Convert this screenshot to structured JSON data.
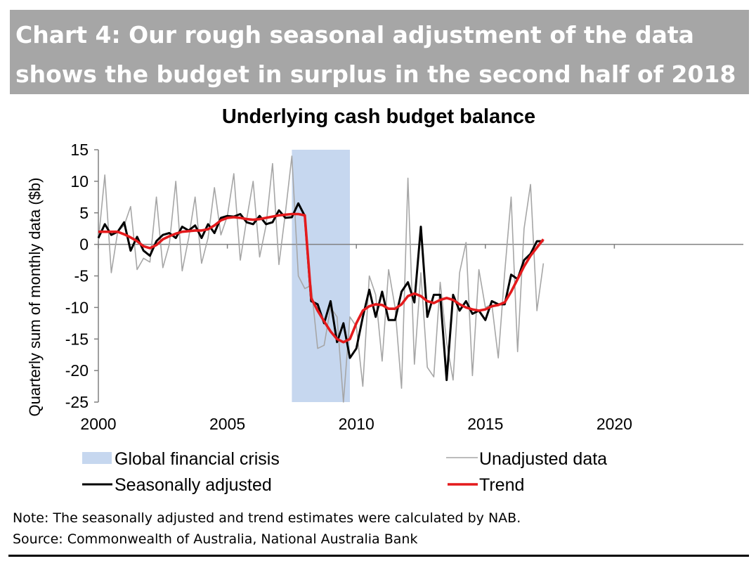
{
  "header": {
    "line1": "Chart 4: Our rough seasonal adjustment of the data",
    "line2": "shows the budget in surplus in the second half of 2018"
  },
  "colors": {
    "banner": "#a6a6a6",
    "shade": "#c6d7ef",
    "unadjusted": "#a6a6a6",
    "seasonal": "#000000",
    "trend": "#e41a1c"
  },
  "chart_data": {
    "type": "line",
    "title": "Underlying cash budget balance",
    "ylabel": "Quarterly sum of monthly data ($b)",
    "xlabel": "",
    "xlim": [
      2000,
      2025
    ],
    "ylim": [
      -25,
      15
    ],
    "xticks": [
      2000,
      2005,
      2010,
      2015,
      2020
    ],
    "yticks": [
      15,
      10,
      5,
      0,
      -5,
      -10,
      -15,
      -20,
      -25
    ],
    "shaded_region": {
      "name": "Global financial crisis",
      "x": [
        2007.5,
        2009.75
      ]
    },
    "legend": [
      "Global financial crisis",
      "Unadjusted data",
      "Seasonally adjusted",
      "Trend"
    ],
    "x_start": 2000.0,
    "x_step": 0.25,
    "series": [
      {
        "name": "Unadjusted data",
        "values": [
          0.5,
          11,
          -4.5,
          2,
          3,
          6,
          -4,
          -2.2,
          -2.8,
          7.5,
          -3.7,
          0,
          10,
          -4.2,
          1,
          7.5,
          -3,
          1,
          9,
          1.5,
          4.5,
          11.2,
          -2.5,
          4,
          10,
          -2,
          3,
          12.8,
          -3.2,
          5,
          14,
          -5,
          -7,
          -6.5,
          -16.5,
          -16,
          -10,
          -11.5,
          -25,
          -11.5,
          -13,
          -22.5,
          -5,
          -8,
          -18.5,
          -4,
          -10,
          -22.8,
          10.5,
          -19,
          -4.5,
          -19.5,
          -21,
          -6,
          -15.5,
          -21.5,
          -4.5,
          0.3,
          -20.8,
          -4,
          -10,
          -9.5,
          -18,
          -4.5,
          7.5,
          -17,
          2.5,
          9.5,
          -10.5,
          -3
        ]
      },
      {
        "name": "Seasonally adjusted",
        "values": [
          1,
          3.2,
          1.5,
          2,
          3.5,
          -1,
          1.2,
          -1,
          -1.8,
          0.5,
          1.5,
          1.8,
          1,
          2.8,
          2.2,
          3,
          1,
          3.2,
          1.8,
          4.2,
          4.5,
          4.4,
          4.8,
          3.5,
          3.2,
          4.5,
          3.2,
          3.5,
          5.4,
          4.2,
          4.3,
          6.5,
          4.5,
          -9,
          -9.5,
          -12.5,
          -9,
          -15.5,
          -12.5,
          -18,
          -16.5,
          -11.5,
          -7.2,
          -11.5,
          -7.5,
          -12,
          -12,
          -7.5,
          -6,
          -9.2,
          2.8,
          -11.5,
          -8,
          -8,
          -21.5,
          -8,
          -10.5,
          -9,
          -11,
          -10.5,
          -12,
          -9,
          -9.5,
          -9.5,
          -4.8,
          -5.5,
          -2.5,
          -1.5,
          0.5,
          0.5
        ]
      },
      {
        "name": "Trend",
        "values": [
          2,
          2,
          2,
          2,
          1.6,
          1.1,
          0.5,
          -0.3,
          -0.6,
          -0.1,
          0.8,
          1.3,
          1.7,
          2,
          2.1,
          2.2,
          2.2,
          2.4,
          3,
          3.8,
          4.2,
          4.3,
          4.2,
          4,
          3.9,
          4,
          4.2,
          4.4,
          4.6,
          4.7,
          4.8,
          4.8,
          4.6,
          -8.5,
          -10.5,
          -12.2,
          -13.8,
          -15,
          -15.5,
          -15,
          -12.5,
          -10.5,
          -9.8,
          -9.5,
          -9.6,
          -10.2,
          -10.2,
          -9.5,
          -8.2,
          -7.8,
          -8.2,
          -9,
          -9.3,
          -8.8,
          -8.5,
          -8.8,
          -9.5,
          -10,
          -10.3,
          -10.5,
          -10.3,
          -9.8,
          -9.6,
          -9.2,
          -7.5,
          -5.5,
          -3.5,
          -1.8,
          -0.5,
          0.8
        ]
      }
    ]
  },
  "notes": {
    "line1": "Note: The seasonally adjusted and trend estimates were calculated by NAB.",
    "line2": "Source: Commonwealth of Australia, National Australia Bank"
  }
}
